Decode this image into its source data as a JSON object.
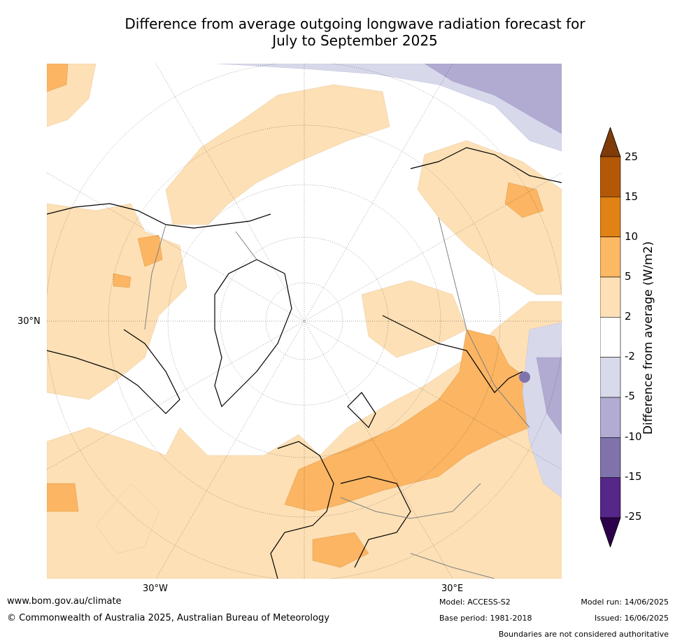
{
  "title": {
    "line1": "Difference from average outgoing longwave radiation forecast for",
    "line2": "July to September 2025"
  },
  "map": {
    "projection": "north-polar-stereographic",
    "lat_label": "30°N",
    "lon_labels": [
      "30°W",
      "30°E"
    ],
    "colors": {
      "light_orange": "#fde0b6",
      "mid_orange": "#fbb563",
      "light_purple": "#d8d8eb",
      "mid_purple": "#b1abd2",
      "ocean_neutral": "#ffffff",
      "coast": "#000000",
      "border": "#808080"
    }
  },
  "colorbar": {
    "label": "Difference from average (W/m2)",
    "ticks": [
      "25",
      "15",
      "10",
      "5",
      "2",
      "-2",
      "-5",
      "-10",
      "-15",
      "-25"
    ],
    "colors": [
      "#7f3b08",
      "#b35806",
      "#e08214",
      "#fdb863",
      "#fee0b6",
      "#ffffff",
      "#d8daeb",
      "#b2abd2",
      "#8073ac",
      "#542788",
      "#2d004b"
    ]
  },
  "footer": {
    "url": "www.bom.gov.au/climate",
    "copyright": "© Commonwealth of Australia 2025, Australian Bureau of Meteorology",
    "model": "Model: ACCESS-S2",
    "base_period": "Base period: 1981-2018",
    "model_run": "Model run: 14/06/2025",
    "issued": "Issued: 16/06/2025",
    "disclaimer": "Boundaries are not considered authoritative"
  }
}
